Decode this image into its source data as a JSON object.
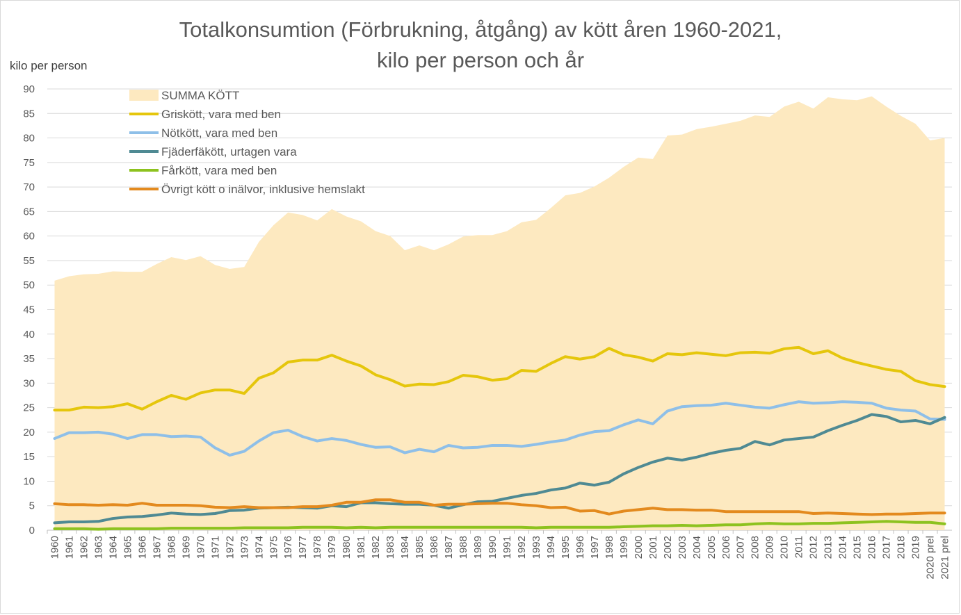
{
  "chart_data": {
    "type": "line",
    "title_line1": "Totalkonsumtion (Förbrukning, åtgång) av kött åren 1960-2021,",
    "title_line2": "kilo per person och år",
    "ylabel": "kilo per person",
    "ylim": [
      0,
      90
    ],
    "ystep": 5,
    "grid": true,
    "legend_position": "top-left",
    "x": [
      "1960",
      "1961",
      "1962",
      "1963",
      "1964",
      "1965",
      "1966",
      "1967",
      "1968",
      "1969",
      "1970",
      "1971",
      "1972",
      "1973",
      "1974",
      "1975",
      "1976",
      "1977",
      "1978",
      "1979",
      "1980",
      "1981",
      "1982",
      "1983",
      "1984",
      "1985",
      "1986",
      "1987",
      "1988",
      "1989",
      "1990",
      "1991",
      "1992",
      "1993",
      "1994",
      "1995",
      "1996",
      "1997",
      "1998",
      "1999",
      "2000",
      "2001",
      "2002",
      "2003",
      "2004",
      "2005",
      "2006",
      "2007",
      "2008",
      "2009",
      "2010",
      "2011",
      "2012",
      "2013",
      "2014",
      "2015",
      "2016",
      "2017",
      "2018",
      "2019",
      "2020 prel",
      "2021 prel"
    ],
    "series": [
      {
        "name": "SUMMA KÖTT",
        "kind": "area",
        "color": "#fde9c0",
        "values": [
          50.9,
          51.8,
          52.2,
          52.3,
          52.8,
          52.7,
          52.7,
          54.3,
          55.7,
          55.1,
          55.9,
          54.1,
          53.3,
          53.7,
          58.8,
          62.2,
          64.8,
          64.3,
          63.2,
          65.5,
          64.0,
          63.0,
          61.0,
          60.0,
          57.1,
          58.1,
          57.1,
          58.3,
          59.9,
          60.2,
          60.2,
          61.0,
          62.8,
          63.3,
          65.7,
          68.3,
          68.8,
          70.1,
          71.9,
          74.1,
          76.0,
          75.7,
          80.5,
          80.7,
          81.8,
          82.3,
          82.9,
          83.5,
          84.6,
          84.3,
          86.4,
          87.4,
          86.0,
          88.3,
          87.9,
          87.7,
          88.5,
          86.4,
          84.5,
          82.9,
          79.5,
          80.0
        ]
      },
      {
        "name": "Griskött, vara med ben",
        "kind": "line",
        "color": "#e5c60c",
        "values": [
          24.5,
          24.5,
          25.1,
          25.0,
          25.2,
          25.8,
          24.7,
          26.2,
          27.5,
          26.7,
          28.0,
          28.6,
          28.6,
          27.9,
          31.0,
          32.1,
          34.3,
          34.7,
          34.7,
          35.7,
          34.5,
          33.5,
          31.7,
          30.7,
          29.4,
          29.8,
          29.7,
          30.3,
          31.6,
          31.3,
          30.6,
          30.9,
          32.6,
          32.4,
          34.0,
          35.4,
          34.9,
          35.4,
          37.1,
          35.8,
          35.3,
          34.5,
          36.0,
          35.8,
          36.2,
          35.9,
          35.6,
          36.2,
          36.3,
          36.1,
          37.0,
          37.3,
          36.0,
          36.6,
          35.1,
          34.2,
          33.5,
          32.8,
          32.4,
          30.5,
          29.7,
          29.3
        ]
      },
      {
        "name": "Nötkött, vara med ben",
        "kind": "line",
        "color": "#8ebfe8",
        "values": [
          18.7,
          19.9,
          19.9,
          20.0,
          19.6,
          18.7,
          19.5,
          19.5,
          19.1,
          19.2,
          19.0,
          16.8,
          15.3,
          16.1,
          18.2,
          19.9,
          20.4,
          19.1,
          18.2,
          18.7,
          18.3,
          17.5,
          16.9,
          17.0,
          15.8,
          16.5,
          16.0,
          17.3,
          16.8,
          16.9,
          17.3,
          17.3,
          17.1,
          17.5,
          18.0,
          18.4,
          19.4,
          20.1,
          20.3,
          21.5,
          22.5,
          21.7,
          24.3,
          25.2,
          25.4,
          25.5,
          25.9,
          25.5,
          25.1,
          24.9,
          25.6,
          26.2,
          25.9,
          26.0,
          26.2,
          26.1,
          25.9,
          24.9,
          24.5,
          24.3,
          22.7,
          22.6
        ]
      },
      {
        "name": "Fjäderfäkött, urtagen vara",
        "kind": "line",
        "color": "#4f8a93",
        "values": [
          1.5,
          1.7,
          1.7,
          1.8,
          2.4,
          2.7,
          2.8,
          3.1,
          3.5,
          3.3,
          3.2,
          3.4,
          4.0,
          4.1,
          4.5,
          4.6,
          4.7,
          4.6,
          4.5,
          5.0,
          4.8,
          5.6,
          5.6,
          5.4,
          5.3,
          5.3,
          5.1,
          4.5,
          5.2,
          5.8,
          5.9,
          6.5,
          7.1,
          7.5,
          8.2,
          8.6,
          9.6,
          9.2,
          9.8,
          11.5,
          12.8,
          13.9,
          14.7,
          14.3,
          14.9,
          15.7,
          16.3,
          16.7,
          18.1,
          17.4,
          18.4,
          18.7,
          19.0,
          20.3,
          21.4,
          22.4,
          23.6,
          23.2,
          22.1,
          22.4,
          21.7,
          23.0
        ]
      },
      {
        "name": "Fårkött, vara med ben",
        "kind": "line",
        "color": "#8dc21f",
        "values": [
          0.3,
          0.3,
          0.3,
          0.2,
          0.3,
          0.3,
          0.3,
          0.3,
          0.4,
          0.4,
          0.4,
          0.4,
          0.4,
          0.5,
          0.5,
          0.5,
          0.5,
          0.6,
          0.6,
          0.6,
          0.5,
          0.6,
          0.5,
          0.6,
          0.6,
          0.6,
          0.6,
          0.6,
          0.6,
          0.6,
          0.6,
          0.6,
          0.6,
          0.5,
          0.6,
          0.6,
          0.6,
          0.6,
          0.6,
          0.7,
          0.8,
          0.9,
          0.9,
          1.0,
          0.9,
          1.0,
          1.1,
          1.1,
          1.3,
          1.4,
          1.3,
          1.3,
          1.4,
          1.4,
          1.5,
          1.6,
          1.7,
          1.8,
          1.7,
          1.6,
          1.6,
          1.3
        ]
      },
      {
        "name": "Övrigt kött o inälvor, inklusive hemslakt",
        "kind": "line",
        "color": "#e38a1e",
        "values": [
          5.4,
          5.2,
          5.2,
          5.1,
          5.2,
          5.1,
          5.5,
          5.1,
          5.1,
          5.1,
          5.0,
          4.7,
          4.6,
          4.8,
          4.6,
          4.6,
          4.6,
          4.8,
          4.8,
          5.1,
          5.7,
          5.7,
          6.2,
          6.2,
          5.7,
          5.7,
          5.1,
          5.3,
          5.3,
          5.4,
          5.5,
          5.5,
          5.2,
          5.0,
          4.6,
          4.7,
          3.9,
          4.0,
          3.3,
          3.9,
          4.2,
          4.5,
          4.2,
          4.2,
          4.1,
          4.1,
          3.8,
          3.8,
          3.8,
          3.8,
          3.8,
          3.8,
          3.4,
          3.5,
          3.4,
          3.3,
          3.2,
          3.3,
          3.3,
          3.4,
          3.5,
          3.5
        ]
      }
    ]
  }
}
